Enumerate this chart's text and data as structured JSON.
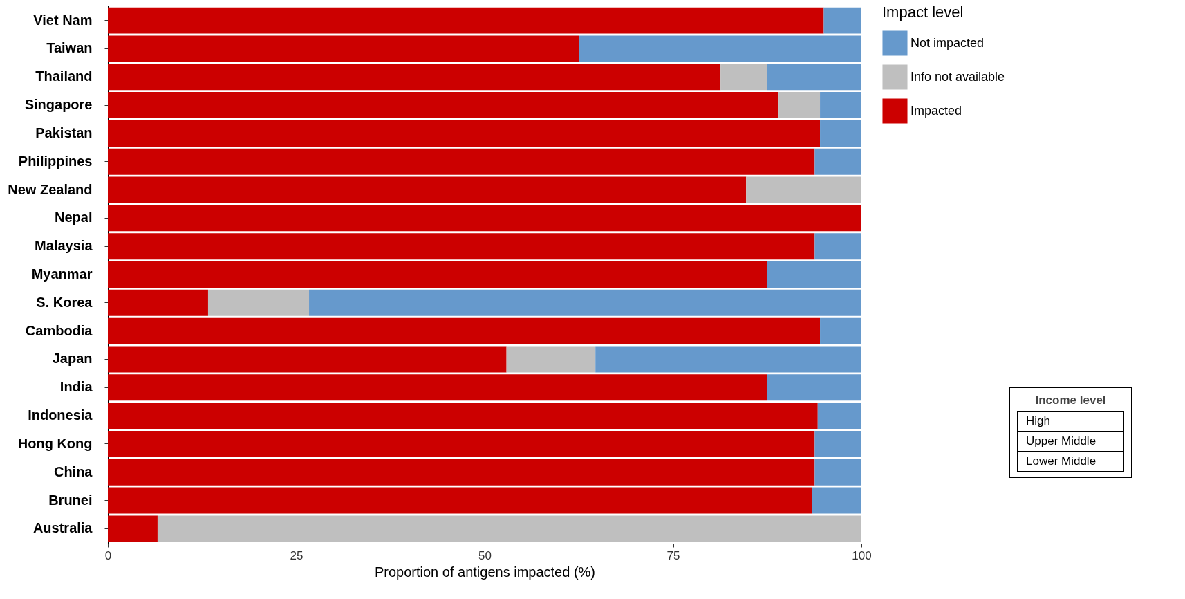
{
  "chart_data": {
    "type": "bar",
    "orientation": "horizontal",
    "stacked": true,
    "xlabel": "Proportion of antigens impacted (%)",
    "legend_title": "Impact level",
    "legend": "right",
    "categories": [
      "Viet Nam",
      "Taiwan",
      "Thailand",
      "Singapore",
      "Pakistan",
      "Philippines",
      "New Zealand",
      "Nepal",
      "Malaysia",
      "Myanmar",
      "S. Korea",
      "Cambodia",
      "Japan",
      "India",
      "Indonesia",
      "Hong Kong",
      "China",
      "Brunei",
      "Australia"
    ],
    "series": [
      {
        "name": "Impacted",
        "color": "#cc0000",
        "values": [
          95,
          62.5,
          81.3,
          89,
          94.5,
          93.8,
          84.7,
          100,
          93.8,
          87.5,
          13.3,
          94.5,
          52.9,
          87.5,
          94.2,
          93.8,
          93.8,
          93.4,
          6.6
        ]
      },
      {
        "name": "Info not available",
        "color": "#bfbfbf",
        "values": [
          0,
          0,
          6.2,
          5.5,
          0,
          0,
          15.3,
          0,
          0,
          0,
          13.4,
          0,
          11.8,
          0,
          0,
          0,
          0,
          0,
          93.4
        ]
      },
      {
        "name": "Not impacted",
        "color": "#6699cc",
        "values": [
          5,
          37.5,
          12.5,
          5.5,
          5.5,
          6.2,
          0,
          0,
          6.2,
          12.5,
          73.3,
          5.5,
          35.3,
          12.5,
          5.8,
          6.2,
          6.2,
          6.6,
          0
        ]
      }
    ],
    "xlim": [
      0,
      100
    ],
    "xticks": [
      0,
      25,
      50,
      75,
      100
    ],
    "grid": false,
    "annotations": [
      "Income level",
      "High",
      "Upper Middle",
      "Lower Middle"
    ]
  }
}
